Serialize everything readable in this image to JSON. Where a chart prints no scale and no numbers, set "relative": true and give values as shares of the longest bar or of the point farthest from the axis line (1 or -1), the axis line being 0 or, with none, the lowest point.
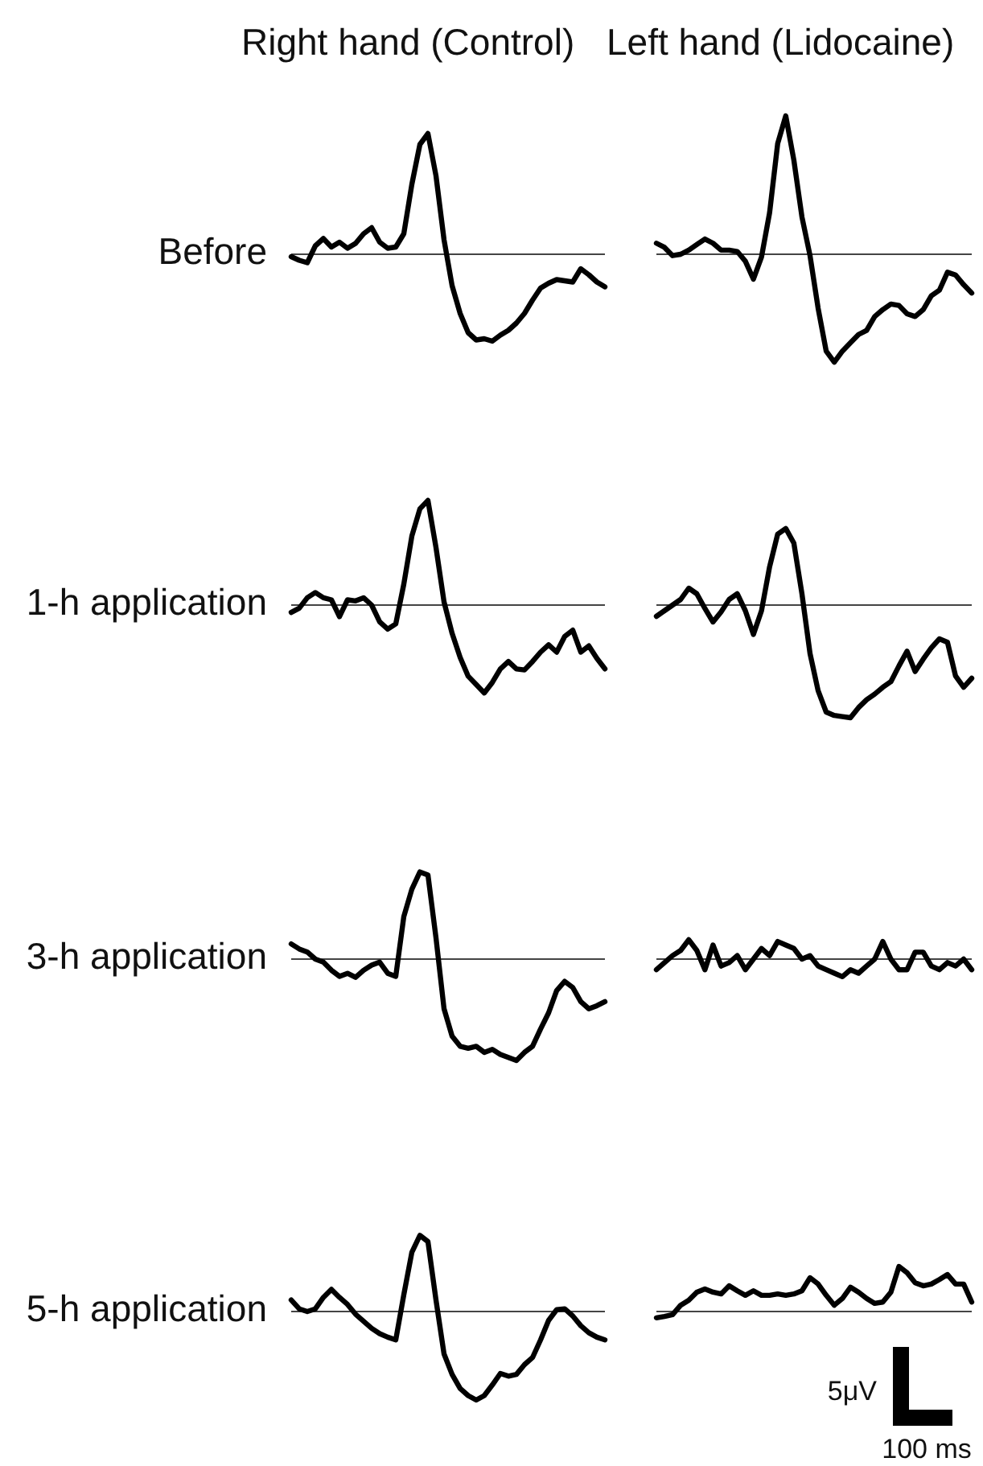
{
  "chart_data": [
    {
      "type": "line",
      "title": "Right hand (Control)",
      "ylabel": "Before",
      "relative": true,
      "categories": [
        null,
        null,
        null,
        null,
        null,
        null,
        null,
        null,
        null,
        null,
        null,
        null,
        null,
        null,
        null,
        null,
        null,
        null,
        null,
        null,
        null,
        null,
        null,
        null,
        null,
        null,
        null,
        null,
        null,
        null,
        null,
        null,
        null,
        null,
        null,
        null,
        null,
        null,
        null,
        null
      ],
      "series": [
        {
          "color": "#000000",
          "values": [
            -0.02,
            -0.05,
            -0.07,
            0.07,
            0.13,
            0.06,
            0.1,
            0.05,
            0.09,
            0.17,
            0.22,
            0.1,
            0.05,
            0.06,
            0.17,
            0.58,
            0.91,
            1,
            0.65,
            0.12,
            -0.26,
            -0.49,
            -0.65,
            -0.71,
            -0.7,
            -0.72,
            -0.67,
            -0.63,
            -0.57,
            -0.49,
            -0.38,
            -0.28,
            -0.24,
            -0.21,
            -0.22,
            -0.23,
            -0.12,
            -0.17,
            -0.23,
            -0.27
          ]
        }
      ]
    },
    {
      "type": "line",
      "title": "Left hand (Lidocaine)",
      "relative": true,
      "categories": [
        null,
        null,
        null,
        null,
        null,
        null,
        null,
        null,
        null,
        null,
        null,
        null,
        null,
        null,
        null,
        null,
        null,
        null,
        null,
        null,
        null,
        null,
        null,
        null,
        null,
        null,
        null,
        null,
        null,
        null,
        null,
        null,
        null,
        null,
        null,
        null,
        null,
        null,
        null,
        null
      ],
      "series": [
        {
          "color": "#000000",
          "values": [
            0.08,
            0.05,
            -0.01,
            0.0,
            0.03,
            0.07,
            0.11,
            0.08,
            0.03,
            0.03,
            0.02,
            -0.05,
            -0.18,
            -0.02,
            0.3,
            0.8,
            1,
            0.68,
            0.27,
            -0.01,
            -0.39,
            -0.7,
            -0.78,
            -0.7,
            -0.64,
            -0.58,
            -0.55,
            -0.45,
            -0.4,
            -0.36,
            -0.37,
            -0.43,
            -0.45,
            -0.4,
            -0.3,
            -0.26,
            -0.13,
            -0.15,
            -0.22,
            -0.28
          ]
        }
      ]
    },
    {
      "type": "line",
      "ylabel": "1-h application",
      "relative": true,
      "categories": [
        null,
        null,
        null,
        null,
        null,
        null,
        null,
        null,
        null,
        null,
        null,
        null,
        null,
        null,
        null,
        null,
        null,
        null,
        null,
        null,
        null,
        null,
        null,
        null,
        null,
        null,
        null,
        null,
        null,
        null,
        null,
        null,
        null,
        null,
        null,
        null,
        null,
        null,
        null,
        null
      ],
      "series": [
        {
          "color": "#000000",
          "values": [
            -0.07,
            -0.03,
            0.07,
            0.12,
            0.07,
            0.05,
            -0.11,
            0.05,
            0.04,
            0.07,
            0,
            -0.16,
            -0.23,
            -0.18,
            0.2,
            0.66,
            0.92,
            1,
            0.55,
            0.03,
            -0.27,
            -0.5,
            -0.68,
            -0.76,
            -0.84,
            -0.74,
            -0.61,
            -0.54,
            -0.61,
            -0.62,
            -0.54,
            -0.45,
            -0.38,
            -0.45,
            -0.3,
            -0.24,
            -0.45,
            -0.39,
            -0.51,
            -0.61
          ]
        }
      ]
    },
    {
      "type": "line",
      "relative": true,
      "categories": [
        null,
        null,
        null,
        null,
        null,
        null,
        null,
        null,
        null,
        null,
        null,
        null,
        null,
        null,
        null,
        null,
        null,
        null,
        null,
        null,
        null,
        null,
        null,
        null,
        null,
        null,
        null,
        null,
        null,
        null,
        null,
        null,
        null,
        null,
        null,
        null,
        null,
        null,
        null,
        null
      ],
      "series": [
        {
          "color": "#000000",
          "values": [
            -0.1,
            -0.05,
            0,
            0.05,
            0.15,
            0.1,
            -0.03,
            -0.15,
            -0.06,
            0.05,
            0.1,
            -0.05,
            -0.26,
            -0.05,
            0.34,
            0.63,
            0.68,
            0.55,
            0.1,
            -0.43,
            -0.76,
            -0.95,
            -0.98,
            -0.99,
            -1,
            -0.91,
            -0.84,
            -0.79,
            -0.73,
            -0.68,
            -0.54,
            -0.41,
            -0.59,
            -0.48,
            -0.38,
            -0.3,
            -0.33,
            -0.63,
            -0.73,
            -0.65
          ]
        }
      ]
    },
    {
      "type": "line",
      "ylabel": "3-h application",
      "relative": true,
      "categories": [
        null,
        null,
        null,
        null,
        null,
        null,
        null,
        null,
        null,
        null,
        null,
        null,
        null,
        null,
        null,
        null,
        null,
        null,
        null,
        null,
        null,
        null,
        null,
        null,
        null,
        null,
        null,
        null,
        null,
        null,
        null,
        null,
        null,
        null,
        null,
        null,
        null,
        null,
        null,
        null
      ],
      "series": [
        {
          "color": "#000000",
          "values": [
            0.15,
            0.1,
            0.07,
            0,
            -0.03,
            -0.11,
            -0.17,
            -0.14,
            -0.18,
            -0.11,
            -0.06,
            -0.03,
            -0.14,
            -0.17,
            0.42,
            0.69,
            0.86,
            0.83,
            0.21,
            -0.49,
            -0.76,
            -0.86,
            -0.88,
            -0.86,
            -0.92,
            -0.89,
            -0.94,
            -0.97,
            -1,
            -0.92,
            -0.86,
            -0.69,
            -0.53,
            -0.31,
            -0.22,
            -0.28,
            -0.42,
            -0.49,
            -0.46,
            -0.42
          ]
        }
      ]
    },
    {
      "type": "line",
      "relative": true,
      "categories": [
        null,
        null,
        null,
        null,
        null,
        null,
        null,
        null,
        null,
        null,
        null,
        null,
        null,
        null,
        null,
        null,
        null,
        null,
        null,
        null,
        null,
        null,
        null,
        null,
        null,
        null,
        null,
        null,
        null,
        null,
        null,
        null,
        null,
        null,
        null,
        null,
        null,
        null,
        null,
        null
      ],
      "series": [
        {
          "color": "#000000",
          "values": [
            -0.55,
            -0.18,
            0.18,
            0.45,
            1,
            0.45,
            -0.55,
            0.73,
            -0.36,
            -0.18,
            0.18,
            -0.55,
            0,
            0.55,
            0.18,
            0.91,
            0.73,
            0.55,
            0,
            0.18,
            -0.36,
            -0.55,
            -0.73,
            -0.91,
            -0.55,
            -0.73,
            -0.36,
            0,
            0.91,
            0,
            -0.55,
            -0.55,
            0.36,
            0.36,
            -0.36,
            -0.55,
            -0.18,
            -0.36,
            0,
            -0.55
          ]
        }
      ]
    },
    {
      "type": "line",
      "ylabel": "5-h application",
      "relative": true,
      "categories": [
        null,
        null,
        null,
        null,
        null,
        null,
        null,
        null,
        null,
        null,
        null,
        null,
        null,
        null,
        null,
        null,
        null,
        null,
        null,
        null,
        null,
        null,
        null,
        null,
        null,
        null,
        null,
        null,
        null,
        null,
        null,
        null,
        null,
        null,
        null,
        null,
        null,
        null,
        null,
        null
      ],
      "series": [
        {
          "color": "#000000",
          "values": [
            0.13,
            0.03,
            0,
            0.03,
            0.16,
            0.25,
            0.16,
            0.08,
            -0.03,
            -0.11,
            -0.19,
            -0.25,
            -0.29,
            -0.32,
            0.19,
            0.67,
            0.86,
            0.79,
            0.13,
            -0.48,
            -0.71,
            -0.87,
            -0.95,
            -1,
            -0.95,
            -0.83,
            -0.7,
            -0.73,
            -0.71,
            -0.6,
            -0.52,
            -0.32,
            -0.1,
            0.02,
            0.03,
            -0.05,
            -0.16,
            -0.24,
            -0.29,
            -0.32
          ]
        }
      ]
    },
    {
      "type": "line",
      "relative": true,
      "annotations": [
        "5μV",
        "100 ms"
      ],
      "categories": [
        null,
        null,
        null,
        null,
        null,
        null,
        null,
        null,
        null,
        null,
        null,
        null,
        null,
        null,
        null,
        null,
        null,
        null,
        null,
        null,
        null,
        null,
        null,
        null,
        null,
        null,
        null,
        null,
        null,
        null,
        null,
        null,
        null,
        null,
        null,
        null,
        null,
        null,
        null,
        null
      ],
      "series": [
        {
          "color": "#000000",
          "values": [
            -0.14,
            -0.11,
            -0.07,
            0.14,
            0.25,
            0.43,
            0.5,
            0.43,
            0.39,
            0.57,
            0.46,
            0.36,
            0.46,
            0.36,
            0.36,
            0.39,
            0.36,
            0.39,
            0.46,
            0.75,
            0.61,
            0.36,
            0.14,
            0.29,
            0.54,
            0.43,
            0.29,
            0.18,
            0.21,
            0.43,
            1,
            0.86,
            0.64,
            0.57,
            0.61,
            0.71,
            0.82,
            0.61,
            0.61,
            0.21
          ]
        }
      ]
    }
  ]
}
